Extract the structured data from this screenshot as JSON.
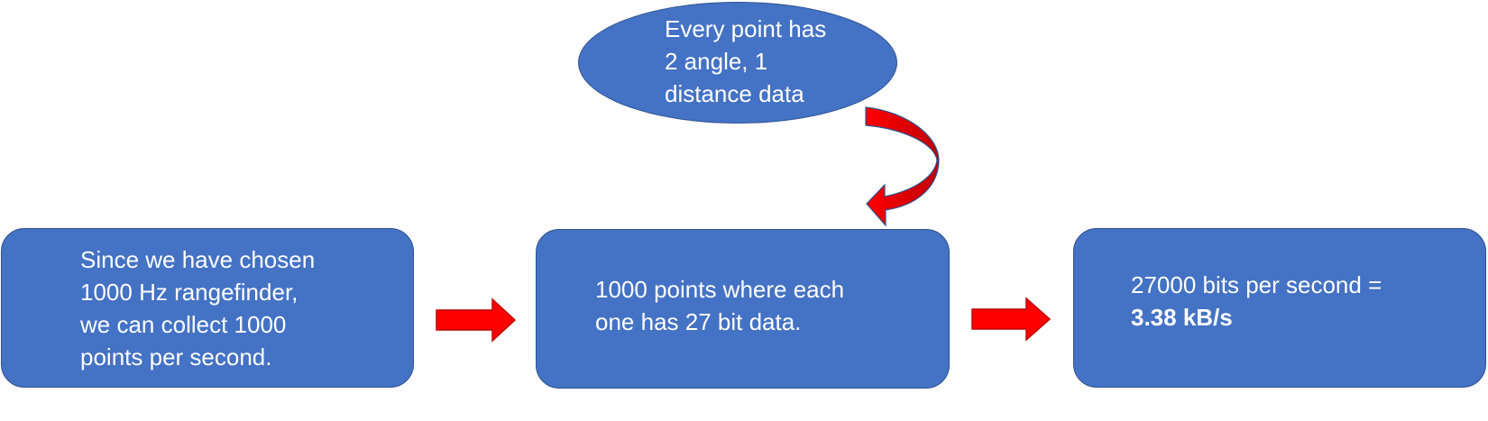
{
  "colors": {
    "box_fill": "#4472C4",
    "box_border": "#2F528F",
    "text": "#FFFFFF",
    "arrow_fill": "#FF0000",
    "arrow_border": "#C00000"
  },
  "oval": {
    "lines": [
      "Every point has",
      "2 angle, 1",
      "distance data"
    ]
  },
  "boxes": {
    "left": {
      "lines": [
        "Since we have chosen",
        "1000 Hz rangefinder,",
        "we can collect 1000",
        "points per second."
      ]
    },
    "middle": {
      "lines": [
        "1000 points where each",
        "one has 27 bit data."
      ]
    },
    "right": {
      "line1": "27000 bits per second =",
      "line2": "3.38 kB/s"
    }
  }
}
